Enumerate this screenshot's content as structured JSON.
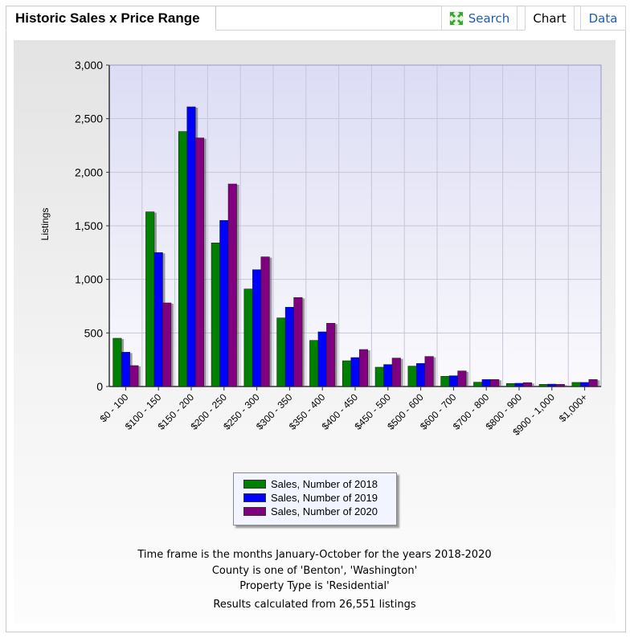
{
  "header": {
    "title": "Historic Sales x Price Range",
    "tabs": {
      "search": "Search",
      "chart": "Chart",
      "data": "Data"
    }
  },
  "icons": {
    "search_tab": "expand-arrows-icon"
  },
  "colors": {
    "s2018": "#008000",
    "s2019": "#0000ff",
    "s2020": "#800080",
    "link": "#1f5db3"
  },
  "chart_data": {
    "type": "bar",
    "ylabel": "Listings",
    "xlabel": "",
    "ylim": [
      0,
      3000
    ],
    "yticks": [
      "0",
      "500",
      "1,000",
      "1,500",
      "2,000",
      "2,500",
      "3,000"
    ],
    "ytick_values": [
      0,
      500,
      1000,
      1500,
      2000,
      2500,
      3000
    ],
    "grid": true,
    "legend_placement": "bottom-center",
    "categories": [
      "$0 - 100",
      "$100 - 150",
      "$150 - 200",
      "$200 - 250",
      "$250 - 300",
      "$300 - 350",
      "$350 - 400",
      "$400 - 450",
      "$450 - 500",
      "$500 - 600",
      "$600 - 700",
      "$700 - 800",
      "$800 - 900",
      "$900 - 1,000",
      "$1,000+"
    ],
    "series": [
      {
        "name": "Sales, Number of 2018",
        "values": [
          450,
          1630,
          2380,
          1340,
          910,
          640,
          430,
          240,
          180,
          190,
          95,
          40,
          28,
          20,
          38
        ]
      },
      {
        "name": "Sales, Number of 2019",
        "values": [
          320,
          1250,
          2610,
          1550,
          1090,
          740,
          510,
          270,
          205,
          215,
          100,
          65,
          30,
          22,
          38
        ]
      },
      {
        "name": "Sales, Number of 2020",
        "values": [
          195,
          780,
          2320,
          1890,
          1210,
          830,
          590,
          345,
          265,
          280,
          145,
          65,
          36,
          20,
          65
        ]
      }
    ]
  },
  "footer": {
    "line1": "Time frame is the months January-October for the years 2018-2020",
    "line2": "County is one of 'Benton', 'Washington'",
    "line3": "Property Type is 'Residential'",
    "line4": "Results calculated from 26,551 listings"
  }
}
